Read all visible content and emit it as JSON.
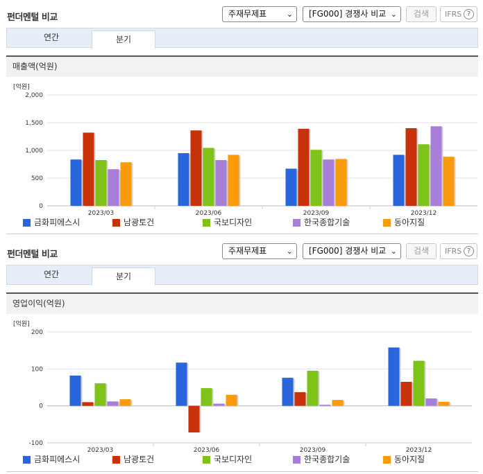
{
  "colors": [
    "#2965db",
    "#c8320a",
    "#7fc21a",
    "#a77fd9",
    "#f99b0c"
  ],
  "panels": [
    {
      "header": {
        "title": "펀더멘털 비교",
        "statement_select": "주재무제표",
        "peer_select": "[FG000] 경쟁사 비교",
        "search_label": "검색",
        "ifrs_label": "IFRS",
        "help_label": "?"
      },
      "tabs": [
        {
          "label": "연간"
        },
        {
          "label": "분기"
        }
      ],
      "metric_label": "매출액(억원)",
      "unit_label": "[억원]",
      "legend": [
        "금화피에스시",
        "남광토건",
        "국보디자인",
        "한국종합기술",
        "동아지질"
      ]
    },
    {
      "header": {
        "title": "펀더멘털 비교",
        "statement_select": "주재무제표",
        "peer_select": "[FG000] 경쟁사 비교",
        "search_label": "검색",
        "ifrs_label": "IFRS",
        "help_label": "?"
      },
      "tabs": [
        {
          "label": "연간"
        },
        {
          "label": "분기"
        }
      ],
      "metric_label": "영업이익(억원)",
      "unit_label": "[억원]",
      "legend": [
        "금화피에스시",
        "남광토건",
        "국보디자인",
        "한국종합기술",
        "동아지질"
      ]
    }
  ],
  "chart_data": [
    {
      "type": "bar",
      "title": "매출액(억원)",
      "ylabel": "[억원]",
      "categories": [
        "2023/03",
        "2023/06",
        "2023/09",
        "2023/12"
      ],
      "ylim": [
        0,
        2000
      ],
      "yticks": [
        0,
        500,
        1000,
        1500,
        2000
      ],
      "ytick_labels": [
        "0",
        "500",
        "1,000",
        "1,500",
        "2,000"
      ],
      "grid": true,
      "legend_position": "bottom",
      "series": [
        {
          "name": "금화피에스시",
          "values": [
            835,
            950,
            670,
            920
          ]
        },
        {
          "name": "남광토건",
          "values": [
            1320,
            1360,
            1390,
            1400
          ]
        },
        {
          "name": "국보디자인",
          "values": [
            825,
            1045,
            1010,
            1110
          ]
        },
        {
          "name": "한국종합기술",
          "values": [
            660,
            825,
            835,
            1435
          ]
        },
        {
          "name": "동아지질",
          "values": [
            785,
            920,
            845,
            885
          ]
        }
      ]
    },
    {
      "type": "bar",
      "title": "영업이익(억원)",
      "ylabel": "[억원]",
      "categories": [
        "2023/03",
        "2023/06",
        "2023/09",
        "2023/12"
      ],
      "ylim": [
        -100,
        200
      ],
      "yticks": [
        -100,
        0,
        100,
        200
      ],
      "ytick_labels": [
        "-100",
        "0",
        "100",
        "200"
      ],
      "grid": true,
      "legend_position": "bottom",
      "series": [
        {
          "name": "금화피에스시",
          "values": [
            82,
            117,
            76,
            158
          ]
        },
        {
          "name": "남광토건",
          "values": [
            10,
            -72,
            37,
            65
          ]
        },
        {
          "name": "국보디자인",
          "values": [
            61,
            48,
            95,
            122
          ]
        },
        {
          "name": "한국종합기술",
          "values": [
            12,
            6,
            3,
            20
          ]
        },
        {
          "name": "동아지질",
          "values": [
            18,
            30,
            16,
            11
          ]
        }
      ]
    }
  ]
}
